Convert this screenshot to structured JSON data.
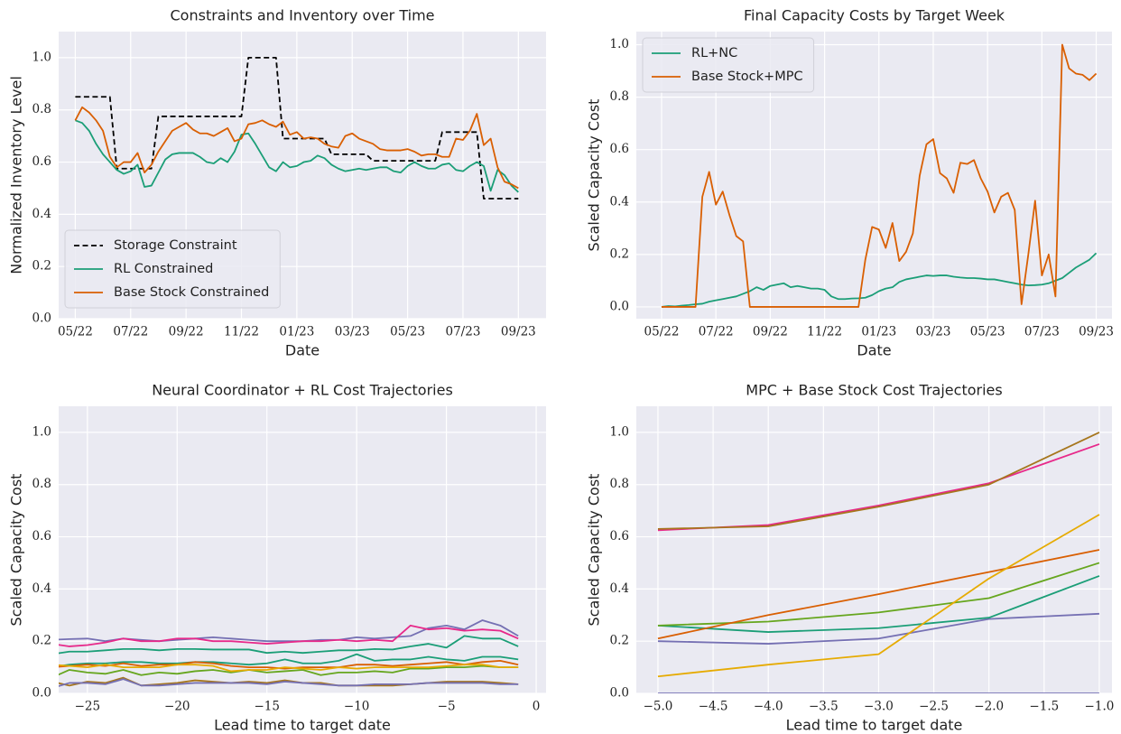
{
  "chart_data": [
    {
      "type": "line",
      "title": "Constraints and Inventory over Time",
      "xlabel": "Date",
      "ylabel": "Normalized Inventory Level",
      "x": [
        0,
        0.25,
        0.5,
        0.75,
        1,
        1.25,
        1.5,
        1.75,
        2,
        2.25,
        2.5,
        2.75,
        3,
        3.25,
        3.5,
        3.75,
        4,
        4.25,
        4.5,
        4.75,
        5,
        5.25,
        5.5,
        5.75,
        6,
        6.25,
        6.5,
        6.75,
        7,
        7.25,
        7.5,
        7.75,
        8,
        8.25,
        8.5,
        8.75,
        9,
        9.25,
        9.5,
        9.75,
        10,
        10.25,
        10.5,
        10.75,
        11,
        11.25,
        11.5,
        11.75,
        12,
        12.25,
        12.5,
        12.75,
        13,
        13.25,
        13.5,
        13.75,
        14,
        14.25,
        14.5,
        14.75,
        15,
        15.25,
        15.5,
        15.75,
        16
      ],
      "series": [
        {
          "name": "Storage Constraint",
          "color": "#000000",
          "linestyle": "dashed",
          "values": [
            0.85,
            0.85,
            0.85,
            0.85,
            0.85,
            0.85,
            0.575,
            0.575,
            0.575,
            0.575,
            0.575,
            0.575,
            0.775,
            0.775,
            0.775,
            0.775,
            0.775,
            0.775,
            0.775,
            0.775,
            0.775,
            0.775,
            0.775,
            0.775,
            0.775,
            1.0,
            1.0,
            1.0,
            1.0,
            1.0,
            0.69,
            0.69,
            0.69,
            0.69,
            0.69,
            0.69,
            0.69,
            0.63,
            0.63,
            0.63,
            0.63,
            0.63,
            0.63,
            0.605,
            0.605,
            0.605,
            0.605,
            0.605,
            0.605,
            0.605,
            0.605,
            0.605,
            0.605,
            0.715,
            0.715,
            0.715,
            0.715,
            0.715,
            0.715,
            0.46,
            0.46,
            0.46,
            0.46,
            0.46,
            0.46
          ]
        },
        {
          "name": "RL Constrained",
          "color": "#1b9e77",
          "values": [
            0.76,
            0.75,
            0.72,
            0.67,
            0.63,
            0.6,
            0.57,
            0.555,
            0.565,
            0.59,
            0.505,
            0.51,
            0.56,
            0.61,
            0.63,
            0.635,
            0.635,
            0.635,
            0.62,
            0.6,
            0.595,
            0.615,
            0.6,
            0.64,
            0.705,
            0.71,
            0.67,
            0.625,
            0.58,
            0.565,
            0.6,
            0.58,
            0.585,
            0.6,
            0.605,
            0.625,
            0.615,
            0.59,
            0.575,
            0.565,
            0.57,
            0.575,
            0.57,
            0.575,
            0.58,
            0.58,
            0.565,
            0.56,
            0.585,
            0.6,
            0.585,
            0.575,
            0.575,
            0.59,
            0.595,
            0.57,
            0.565,
            0.585,
            0.6,
            0.585,
            0.49,
            0.57,
            0.55,
            0.51,
            0.485
          ]
        },
        {
          "name": "Base Stock Constrained",
          "color": "#d95f02",
          "values": [
            0.76,
            0.81,
            0.79,
            0.76,
            0.72,
            0.62,
            0.58,
            0.6,
            0.6,
            0.635,
            0.56,
            0.59,
            0.64,
            0.68,
            0.72,
            0.735,
            0.75,
            0.725,
            0.71,
            0.71,
            0.7,
            0.715,
            0.73,
            0.68,
            0.69,
            0.745,
            0.75,
            0.76,
            0.745,
            0.735,
            0.755,
            0.705,
            0.715,
            0.69,
            0.695,
            0.69,
            0.67,
            0.66,
            0.655,
            0.7,
            0.71,
            0.69,
            0.68,
            0.67,
            0.65,
            0.645,
            0.645,
            0.645,
            0.65,
            0.64,
            0.625,
            0.63,
            0.63,
            0.62,
            0.62,
            0.69,
            0.685,
            0.72,
            0.785,
            0.665,
            0.69,
            0.58,
            0.525,
            0.515,
            0.5
          ]
        }
      ],
      "xlim": [
        -0.6,
        17.0
      ],
      "xticks": [
        {
          "value": 0,
          "label": "05/22"
        },
        {
          "value": 2,
          "label": "07/22"
        },
        {
          "value": 4,
          "label": "09/22"
        },
        {
          "value": 6,
          "label": "11/22"
        },
        {
          "value": 8,
          "label": "01/23"
        },
        {
          "value": 10,
          "label": "03/23"
        },
        {
          "value": 12,
          "label": "05/23"
        },
        {
          "value": 14,
          "label": "07/23"
        },
        {
          "value": 16,
          "label": "09/23"
        }
      ],
      "ylim": [
        0,
        1.1
      ],
      "yticks": [
        {
          "value": 0,
          "label": "0.0"
        },
        0.2,
        0.4,
        0.6,
        0.8,
        {
          "value": 1,
          "label": "1.0"
        }
      ],
      "grid": true,
      "legend": "lower left"
    },
    {
      "type": "line",
      "title": "Final Capacity Costs by Target Week",
      "xlabel": "Date",
      "ylabel": "Scaled Capacity Cost",
      "x": [
        0,
        0.25,
        0.5,
        0.75,
        1,
        1.25,
        1.5,
        1.75,
        2,
        2.25,
        2.5,
        2.75,
        3,
        3.25,
        3.5,
        3.75,
        4,
        4.25,
        4.5,
        4.75,
        5,
        5.25,
        5.5,
        5.75,
        6,
        6.25,
        6.5,
        6.75,
        7,
        7.25,
        7.5,
        7.75,
        8,
        8.25,
        8.5,
        8.75,
        9,
        9.25,
        9.5,
        9.75,
        10,
        10.25,
        10.5,
        10.75,
        11,
        11.25,
        11.5,
        11.75,
        12,
        12.25,
        12.5,
        12.75,
        13,
        13.25,
        13.5,
        13.75,
        14,
        14.25,
        14.5,
        14.75,
        15,
        15.25,
        15.5,
        15.75,
        16
      ],
      "series": [
        {
          "name": "RL+NC",
          "color": "#1b9e77",
          "values": [
            0,
            0.003,
            0.002,
            0.005,
            0.007,
            0.01,
            0.012,
            0.02,
            0.025,
            0.03,
            0.035,
            0.04,
            0.05,
            0.06,
            0.075,
            0.065,
            0.08,
            0.085,
            0.09,
            0.075,
            0.08,
            0.075,
            0.07,
            0.07,
            0.065,
            0.04,
            0.03,
            0.03,
            0.032,
            0.033,
            0.035,
            0.045,
            0.06,
            0.07,
            0.075,
            0.095,
            0.105,
            0.11,
            0.115,
            0.12,
            0.118,
            0.12,
            0.12,
            0.115,
            0.112,
            0.11,
            0.11,
            0.108,
            0.105,
            0.105,
            0.1,
            0.095,
            0.09,
            0.085,
            0.082,
            0.083,
            0.085,
            0.09,
            0.1,
            0.11,
            0.13,
            0.15,
            0.165,
            0.18,
            0.205
          ]
        },
        {
          "name": "Base Stock+MPC",
          "color": "#d95f02",
          "values": [
            0,
            0,
            0,
            0,
            0,
            0,
            0.42,
            0.515,
            0.39,
            0.44,
            0.35,
            0.27,
            0.25,
            0,
            0,
            0,
            0,
            0,
            0,
            0,
            0,
            0,
            0,
            0,
            0,
            0,
            0,
            0,
            0,
            0,
            0.18,
            0.305,
            0.295,
            0.225,
            0.32,
            0.175,
            0.21,
            0.28,
            0.5,
            0.62,
            0.64,
            0.51,
            0.49,
            0.435,
            0.55,
            0.545,
            0.56,
            0.49,
            0.44,
            0.36,
            0.42,
            0.435,
            0.37,
            0.01,
            0.2,
            0.405,
            0.12,
            0.2,
            0.04,
            1.0,
            0.91,
            0.89,
            0.885,
            0.865,
            0.89
          ]
        }
      ],
      "xlim": [
        -0.93,
        16.58
      ],
      "xticks": [
        {
          "value": 0,
          "label": "05/22"
        },
        {
          "value": 2,
          "label": "07/22"
        },
        {
          "value": 4,
          "label": "09/22"
        },
        {
          "value": 6,
          "label": "11/22"
        },
        {
          "value": 8,
          "label": "01/23"
        },
        {
          "value": 10,
          "label": "03/23"
        },
        {
          "value": 12,
          "label": "05/23"
        },
        {
          "value": 14,
          "label": "07/23"
        },
        {
          "value": 16,
          "label": "09/23"
        }
      ],
      "ylim": [
        -0.045,
        1.05
      ],
      "yticks": [
        {
          "value": 0,
          "label": "0.0"
        },
        0.2,
        0.4,
        0.6,
        0.8,
        {
          "value": 1,
          "label": "1.0"
        }
      ],
      "grid": true,
      "legend": "upper left"
    },
    {
      "type": "line",
      "title": "Neural Coordinator + RL Cost Trajectories",
      "xlabel": "Lead time to target date",
      "ylabel": "Scaled Capacity Cost",
      "x": [
        -27,
        -26,
        -25,
        -24,
        -23,
        -22,
        -21,
        -20,
        -19,
        -18,
        -17,
        -16,
        -15,
        -14,
        -13,
        -12,
        -11,
        -10,
        -9,
        -8,
        -7,
        -6,
        -5,
        -4,
        -3,
        -2,
        -1
      ],
      "series": [
        {
          "color": "#7570b3",
          "values": [
            0.205,
            0.208,
            0.21,
            0.2,
            0.21,
            0.205,
            0.2,
            0.205,
            0.21,
            0.215,
            0.21,
            0.205,
            0.2,
            0.2,
            0.2,
            0.205,
            0.205,
            0.215,
            0.21,
            0.215,
            0.22,
            0.25,
            0.26,
            0.245,
            0.28,
            0.26,
            0.22
          ]
        },
        {
          "color": "#e7298a",
          "values": [
            0.19,
            0.18,
            0.185,
            0.195,
            0.21,
            0.2,
            0.2,
            0.21,
            0.21,
            0.2,
            0.2,
            0.195,
            0.19,
            0.195,
            0.2,
            0.2,
            0.205,
            0.2,
            0.205,
            0.2,
            0.26,
            0.245,
            0.25,
            0.24,
            0.245,
            0.24,
            0.21
          ]
        },
        {
          "color": "#1b9e77",
          "values": [
            0.15,
            0.16,
            0.16,
            0.165,
            0.17,
            0.17,
            0.165,
            0.17,
            0.17,
            0.168,
            0.168,
            0.168,
            0.155,
            0.16,
            0.155,
            0.16,
            0.165,
            0.165,
            0.17,
            0.168,
            0.18,
            0.19,
            0.175,
            0.22,
            0.21,
            0.21,
            0.18
          ]
        },
        {
          "color": "#1b9e77",
          "values": [
            0.1,
            0.11,
            0.115,
            0.115,
            0.12,
            0.12,
            0.115,
            0.115,
            0.12,
            0.12,
            0.115,
            0.11,
            0.115,
            0.13,
            0.115,
            0.115,
            0.125,
            0.15,
            0.125,
            0.13,
            0.13,
            0.14,
            0.13,
            0.125,
            0.14,
            0.14,
            0.13
          ]
        },
        {
          "color": "#66a61e",
          "values": [
            0.06,
            0.09,
            0.08,
            0.075,
            0.09,
            0.07,
            0.08,
            0.075,
            0.085,
            0.09,
            0.08,
            0.09,
            0.08,
            0.085,
            0.09,
            0.07,
            0.08,
            0.08,
            0.085,
            0.08,
            0.095,
            0.095,
            0.1,
            0.1,
            0.105,
            0.1,
            0.1
          ]
        },
        {
          "color": "#d95f02",
          "values": [
            0.1,
            0.105,
            0.11,
            0.105,
            0.115,
            0.105,
            0.11,
            0.11,
            0.12,
            0.115,
            0.105,
            0.1,
            0.1,
            0.095,
            0.1,
            0.1,
            0.1,
            0.11,
            0.11,
            0.105,
            0.11,
            0.115,
            0.12,
            0.11,
            0.12,
            0.125,
            0.11
          ]
        },
        {
          "color": "#e6ab02",
          "values": [
            0.11,
            0.105,
            0.1,
            0.11,
            0.1,
            0.1,
            0.1,
            0.11,
            0.11,
            0.105,
            0.085,
            0.09,
            0.09,
            0.1,
            0.095,
            0.09,
            0.1,
            0.095,
            0.1,
            0.1,
            0.1,
            0.1,
            0.105,
            0.11,
            0.11,
            0.1,
            0.1
          ]
        },
        {
          "color": "#a6761d",
          "values": [
            0.045,
            0.03,
            0.045,
            0.04,
            0.06,
            0.03,
            0.035,
            0.04,
            0.05,
            0.045,
            0.04,
            0.045,
            0.04,
            0.05,
            0.04,
            0.04,
            0.03,
            0.03,
            0.03,
            0.03,
            0.035,
            0.04,
            0.045,
            0.045,
            0.045,
            0.04,
            0.035
          ]
        },
        {
          "color": "#7570b3",
          "values": [
            0.02,
            0.04,
            0.04,
            0.035,
            0.055,
            0.03,
            0.03,
            0.035,
            0.04,
            0.04,
            0.04,
            0.04,
            0.035,
            0.045,
            0.04,
            0.035,
            0.03,
            0.03,
            0.035,
            0.035,
            0.035,
            0.04,
            0.04,
            0.04,
            0.04,
            0.035,
            0.035
          ]
        }
      ],
      "xlim": [
        -26.6,
        0.55
      ],
      "xticks": [
        {
          "value": -25,
          "label": "−25"
        },
        {
          "value": -20,
          "label": "−20"
        },
        {
          "value": -15,
          "label": "−15"
        },
        {
          "value": -10,
          "label": "−10"
        },
        {
          "value": -5,
          "label": "−5"
        },
        0
      ],
      "ylim": [
        0,
        1.1
      ],
      "yticks": [
        {
          "value": 0,
          "label": "0.0"
        },
        0.2,
        0.4,
        0.6,
        0.8,
        {
          "value": 1,
          "label": "1.0"
        }
      ],
      "grid": true
    },
    {
      "type": "line",
      "title": "MPC + Base Stock Cost Trajectories",
      "xlabel": "Lead time to target date",
      "ylabel": "Scaled Capacity Cost",
      "x": [
        -5,
        -4,
        -3,
        -2,
        -1
      ],
      "series": [
        {
          "color": "#7570b3",
          "values": [
            0,
            0,
            0,
            0,
            0
          ]
        },
        {
          "color": "#7570b3",
          "values": [
            0.2,
            0.19,
            0.21,
            0.285,
            0.305
          ]
        },
        {
          "color": "#1b9e77",
          "values": [
            0.26,
            0.235,
            0.25,
            0.29,
            0.45
          ]
        },
        {
          "color": "#66a61e",
          "values": [
            0.26,
            0.275,
            0.31,
            0.365,
            0.5
          ]
        },
        {
          "color": "#d95f02",
          "values": [
            0.21,
            0.3,
            0.38,
            0.465,
            0.55
          ]
        },
        {
          "color": "#e6ab02",
          "values": [
            0.065,
            0.11,
            0.15,
            0.44,
            0.685
          ]
        },
        {
          "color": "#e7298a",
          "values": [
            0.625,
            0.645,
            0.72,
            0.805,
            0.955
          ]
        },
        {
          "color": "#a6761d",
          "values": [
            0.63,
            0.64,
            0.715,
            0.8,
            1.0
          ]
        }
      ],
      "xlim": [
        -5.196,
        -0.885
      ],
      "xticks": [
        {
          "value": -5,
          "label": "−5.0"
        },
        {
          "value": -4.5,
          "label": "−4.5"
        },
        {
          "value": -4,
          "label": "−4.0"
        },
        {
          "value": -3.5,
          "label": "−3.5"
        },
        {
          "value": -3,
          "label": "−3.0"
        },
        {
          "value": -2.5,
          "label": "−2.5"
        },
        {
          "value": -2,
          "label": "−2.0"
        },
        {
          "value": -1.5,
          "label": "−1.5"
        },
        {
          "value": -1,
          "label": "−1.0"
        }
      ],
      "ylim": [
        0,
        1.1
      ],
      "yticks": [
        {
          "value": 0,
          "label": "0.0"
        },
        0.2,
        0.4,
        0.6,
        0.8,
        {
          "value": 1,
          "label": "1.0"
        }
      ],
      "grid": true
    }
  ]
}
